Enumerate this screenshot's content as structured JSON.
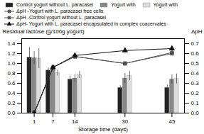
{
  "chart_data": {
    "type": "bar",
    "xlabel": "Storage time (days)",
    "ylabel": "Residual lactose (g/100g yogurt)",
    "y2label": "ΔpH",
    "x": [
      1,
      7,
      14,
      30,
      45
    ],
    "xlim": [
      -3,
      49
    ],
    "xticks": [
      1,
      7,
      14,
      30,
      45
    ],
    "ylim": [
      0.0,
      1.5
    ],
    "yticks": [
      {
        "value": 0,
        "label": "0.0"
      },
      0.2,
      0.4,
      0.6,
      0.8,
      {
        "value": 1,
        "label": "1.0"
      },
      1.2,
      1.4
    ],
    "y2lim": [
      0.0,
      0.75
    ],
    "y2ticks": [
      {
        "value": 0,
        "label": "0.0"
      },
      0.1,
      0.2,
      0.3,
      0.4,
      0.5,
      0.6,
      0.7
    ],
    "grid": false,
    "legend": "top",
    "series": [
      {
        "name": "Control yogurt without L. paracasei",
        "type": "bar",
        "color": "#222222",
        "values": [
          1.12,
          0.86,
          0.68,
          0.51,
          0.51
        ],
        "errors": [
          0.2,
          0.05,
          0.07,
          0.05,
          0.06
        ]
      },
      {
        "name": "Yogurt with",
        "type": "bar",
        "color": "#888888",
        "values": [
          1.11,
          0.9,
          0.7,
          0.7,
          0.68
        ],
        "errors": [
          0.13,
          0.07,
          0.07,
          0.1,
          0.09
        ]
      },
      {
        "name": "Yogurt with",
        "type": "bar",
        "color": "#dddddd",
        "values": [
          1.1,
          0.81,
          0.77,
          0.75,
          0.69
        ],
        "errors": [
          0.2,
          0.06,
          0.07,
          0.09,
          0.1
        ]
      },
      {
        "name": "ΔpH -Yogurt with L. paracasei free cells",
        "type": "line",
        "axis": "y2",
        "color": "#555555",
        "marker": "circle",
        "values": [
          0.0,
          0.46,
          0.57,
          0.5,
          0.61
        ],
        "errors": [
          0.0,
          0.015,
          0.015,
          0.015,
          0.02
        ]
      },
      {
        "name": "ΔpH -Control yogurt without L. paracasei",
        "type": "line",
        "axis": "y2",
        "color": "#555555",
        "marker": "square",
        "values": [
          0.0,
          0.46,
          0.57,
          0.5,
          0.6
        ],
        "errors": [
          0.0,
          0.015,
          0.015,
          0.015,
          0.02
        ]
      },
      {
        "name": "ΔpH- Yogurt with L. paracasei encapsulated in complex coacervates",
        "type": "line",
        "axis": "y2",
        "color": "#111111",
        "marker": "triangle",
        "values": [
          0.0,
          0.46,
          0.58,
          0.63,
          0.65
        ],
        "errors": [
          0.0,
          0.015,
          0.015,
          0.02,
          0.02
        ]
      }
    ]
  }
}
